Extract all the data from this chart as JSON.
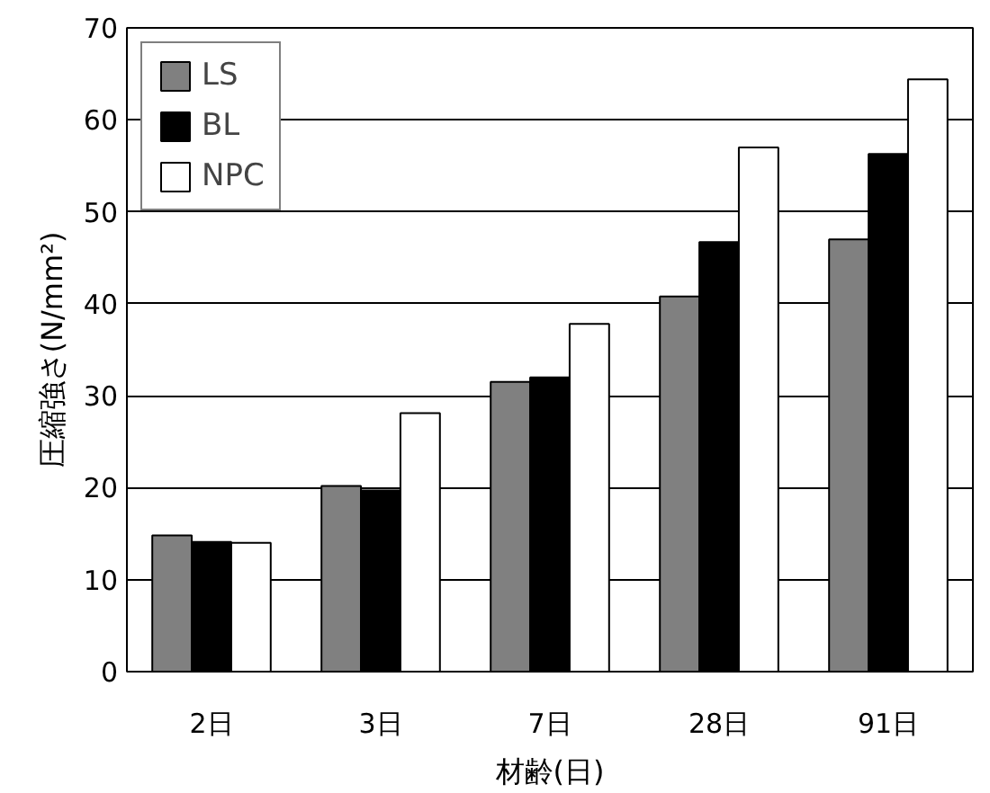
{
  "chart_data": {
    "type": "bar",
    "xlabel": "材齢(日)",
    "ylabel": "圧縮強さ(N/mm²)",
    "categories": [
      "2日",
      "3日",
      "7日",
      "28日",
      "91日"
    ],
    "series": [
      {
        "name": "LS",
        "color": "#808080",
        "values": [
          14.8,
          20.2,
          31.5,
          40.8,
          47.0
        ]
      },
      {
        "name": "BL",
        "color": "#000000",
        "values": [
          14.1,
          19.7,
          32.0,
          46.7,
          56.3
        ]
      },
      {
        "name": "NPC",
        "color": "#ffffff",
        "values": [
          14.0,
          28.1,
          37.8,
          57.0,
          64.4
        ]
      }
    ],
    "ylim": [
      0,
      70
    ],
    "yticks": [
      0,
      10,
      20,
      30,
      40,
      50,
      60,
      70
    ],
    "grid": "y",
    "legend": "top left"
  }
}
